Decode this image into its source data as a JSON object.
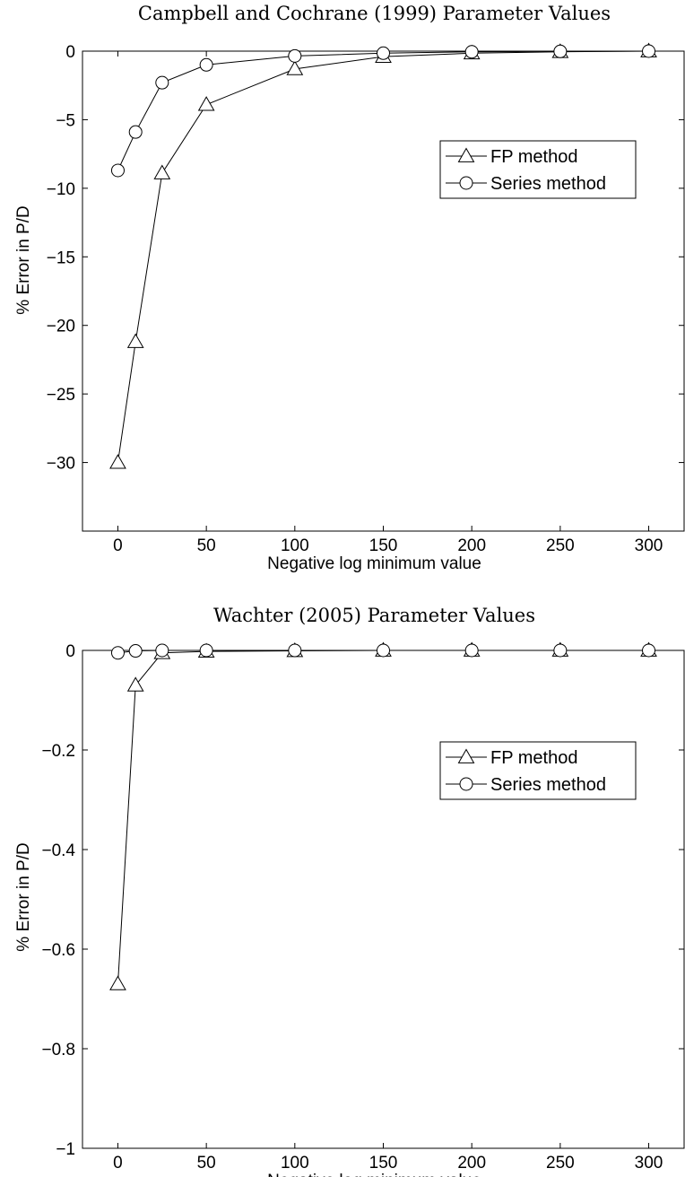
{
  "chart_data": [
    {
      "type": "line",
      "title": "Campbell and Cochrane (1999) Parameter Values",
      "xlabel": "Negative log minimum value",
      "ylabel": "% Error in P/D",
      "xlim": [
        -20,
        320
      ],
      "ylim": [
        -35,
        0
      ],
      "xticks": [
        0,
        50,
        100,
        150,
        200,
        250,
        300
      ],
      "yticks": [
        0,
        -5,
        -10,
        -15,
        -20,
        -25,
        -30
      ],
      "grid": false,
      "legend": "center-right",
      "series": [
        {
          "name": "FP method",
          "marker": "triangle",
          "x": [
            0,
            10,
            25,
            50,
            100,
            150,
            200,
            250,
            300
          ],
          "y": [
            -30.0,
            -21.2,
            -8.9,
            -3.9,
            -1.3,
            -0.4,
            -0.15,
            -0.05,
            0.0
          ]
        },
        {
          "name": "Series method",
          "marker": "circle",
          "x": [
            0,
            10,
            25,
            50,
            100,
            150,
            200,
            250,
            300
          ],
          "y": [
            -8.7,
            -5.9,
            -2.3,
            -1.0,
            -0.35,
            -0.15,
            -0.05,
            -0.02,
            0.0
          ]
        }
      ]
    },
    {
      "type": "line",
      "title": "Wachter (2005) Parameter Values",
      "xlabel": "Negative log minimum value",
      "ylabel": "% Error in P/D",
      "xlim": [
        -20,
        320
      ],
      "ylim": [
        -1,
        0
      ],
      "xticks": [
        0,
        50,
        100,
        150,
        200,
        250,
        300
      ],
      "yticks": [
        0,
        -0.2,
        -0.4,
        -0.6,
        -0.8,
        -1
      ],
      "ytick_labels": [
        "0",
        "−0.2",
        "−0.4",
        "−0.6",
        "−0.8",
        "−1"
      ],
      "grid": false,
      "legend": "center-right",
      "series": [
        {
          "name": "FP method",
          "marker": "triangle",
          "x": [
            0,
            10,
            25,
            50,
            100,
            150,
            200,
            250,
            300
          ],
          "y": [
            -0.67,
            -0.07,
            -0.005,
            -0.002,
            -0.001,
            0.0,
            0.0,
            0.0,
            0.0
          ]
        },
        {
          "name": "Series method",
          "marker": "circle",
          "x": [
            0,
            10,
            25,
            50,
            100,
            150,
            200,
            250,
            300
          ],
          "y": [
            -0.005,
            -0.001,
            0.0,
            0.0,
            0.0,
            0.0,
            0.0,
            0.0,
            0.0
          ]
        }
      ]
    }
  ]
}
